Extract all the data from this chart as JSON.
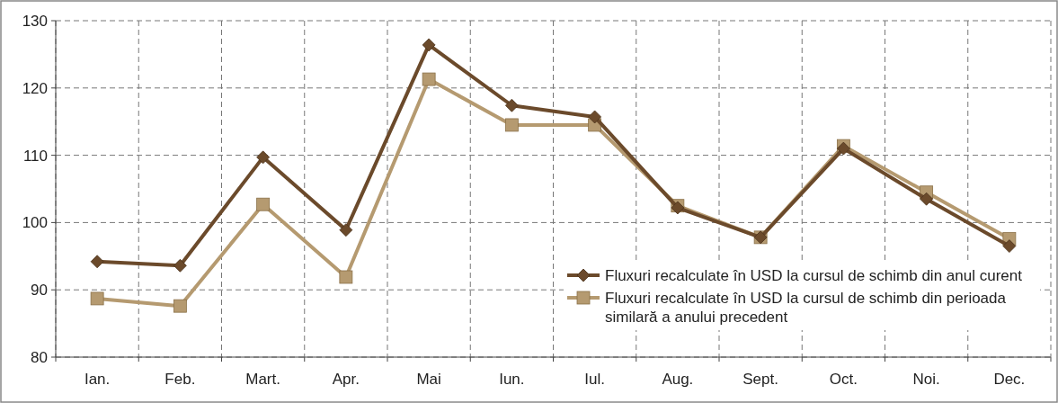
{
  "chart_data": {
    "type": "line",
    "categories": [
      "Ian.",
      "Feb.",
      "Mart.",
      "Apr.",
      "Mai",
      "Iun.",
      "Iul.",
      "Aug.",
      "Sept.",
      "Oct.",
      "Noi.",
      "Dec."
    ],
    "series": [
      {
        "name": "Fluxuri recalculate în USD la cursul de schimb din anul curent",
        "color": "#6b4a2b",
        "marker": "diamond",
        "values": [
          94.2,
          93.6,
          109.7,
          98.9,
          126.4,
          117.4,
          115.7,
          102.2,
          97.8,
          111.0,
          103.5,
          96.5
        ]
      },
      {
        "name": "Fluxuri recalculate în USD la cursul de schimb din perioada similară a anului precedent",
        "color": "#b59a70",
        "marker": "square",
        "values": [
          88.7,
          87.6,
          102.7,
          91.9,
          121.3,
          114.5,
          114.5,
          102.5,
          97.8,
          111.4,
          104.5,
          97.6
        ]
      }
    ],
    "ylim": [
      80,
      130
    ],
    "yticks": [
      80,
      90,
      100,
      110,
      120,
      130
    ],
    "grid": true,
    "legend": "bottom right",
    "line_style": "solid"
  }
}
